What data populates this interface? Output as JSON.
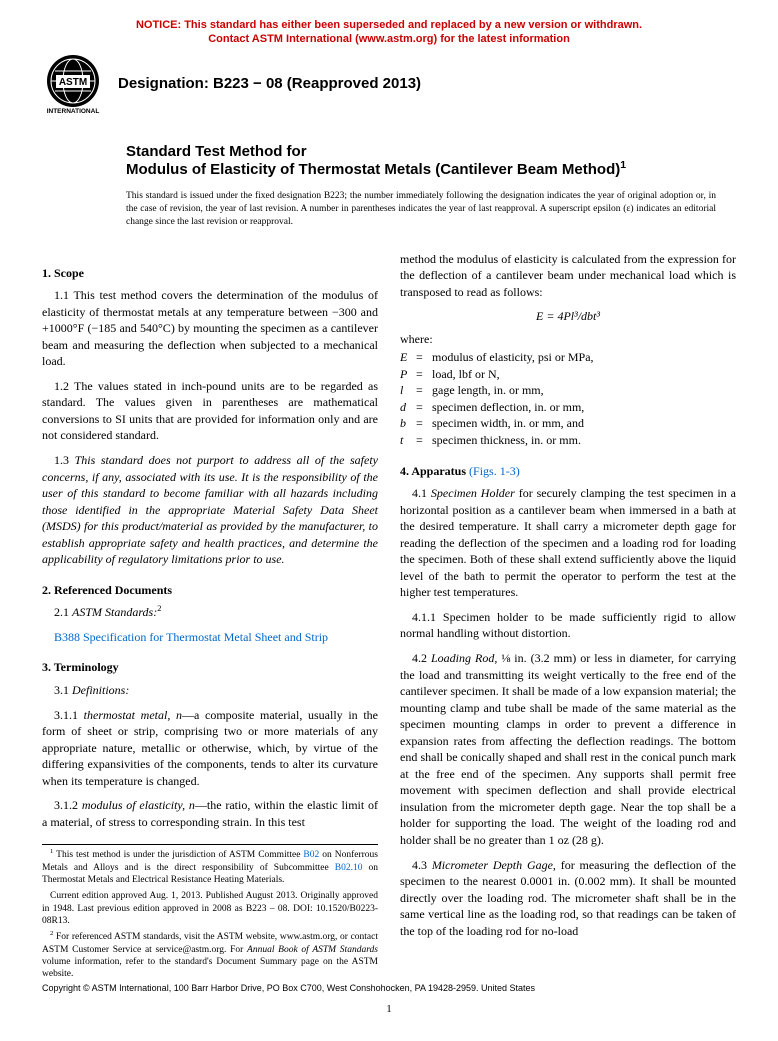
{
  "notice": {
    "color": "#cc0000",
    "line1": "NOTICE: This standard has either been superseded and replaced by a new version or withdrawn.",
    "line2": "Contact ASTM International (www.astm.org) for the latest information"
  },
  "logo": {
    "label_top": "ASTM",
    "label_bottom": "INTERNATIONAL",
    "bg": "#000000",
    "fg": "#ffffff"
  },
  "designation": "Designation: B223 − 08 (Reapproved 2013)",
  "title": {
    "pre": "Standard Test Method for",
    "main": "Modulus of Elasticity of Thermostat Metals (Cantilever Beam Method)",
    "sup": "1"
  },
  "issuance": "This standard is issued under the fixed designation B223; the number immediately following the designation indicates the year of original adoption or, in the case of revision, the year of last revision. A number in parentheses indicates the year of last reapproval. A superscript epsilon (ε) indicates an editorial change since the last revision or reapproval.",
  "left": {
    "s1_head": "1. Scope",
    "s1_1": "1.1 This test method covers the determination of the modulus of elasticity of thermostat metals at any temperature between −300 and +1000°F (−185 and 540°C) by mounting the specimen as a cantilever beam and measuring the deflection when subjected to a mechanical load.",
    "s1_2": "1.2 The values stated in inch-pound units are to be regarded as standard. The values given in parentheses are mathematical conversions to SI units that are provided for information only and are not considered standard.",
    "s1_3": "1.3 This standard does not purport to address all of the safety concerns, if any, associated with its use. It is the responsibility of the user of this standard to become familiar with all hazards including those identified in the appropriate Material Safety Data Sheet (MSDS) for this product/material as provided by the manufacturer, to establish appropriate safety and health practices, and determine the applicability of regulatory limitations prior to use.",
    "s2_head": "2. Referenced Documents",
    "s2_1_label": "2.1 ",
    "s2_1_ital": "ASTM Standards:",
    "s2_1_sup": "2",
    "s2_link": "B388 Specification for Thermostat Metal Sheet and Strip",
    "s3_head": "3. Terminology",
    "s3_1_label": "3.1 ",
    "s3_1_ital": "Definitions:",
    "s3_1_1_pre": "3.1.1 ",
    "s3_1_1_term": "thermostat metal, n",
    "s3_1_1_def": "—a composite material, usually in the form of sheet or strip, comprising two or more materials of any appropriate nature, metallic or otherwise, which, by virtue of the differing expansivities of the components, tends to alter its curvature when its temperature is changed.",
    "s3_1_2_pre": "3.1.2 ",
    "s3_1_2_term": "modulus of elasticity, n",
    "s3_1_2_def": "—the ratio, within the elastic limit of a material, of stress to corresponding strain. In this test",
    "fn1_pre": "1",
    "fn1": " This test method is under the jurisdiction of ASTM Committee ",
    "fn1_link1": "B02",
    "fn1_mid": " on Nonferrous Metals and Alloys and is the direct responsibility of Subcommittee ",
    "fn1_link2": "B02.10",
    "fn1_end": " on Thermostat Metals and Electrical Resistance Heating Materials.",
    "fn1b": "Current edition approved Aug. 1, 2013. Published August 2013. Originally approved in 1948. Last previous edition approved in 2008 as B223 – 08. DOI: 10.1520/B0223-08R13.",
    "fn2_pre": "2",
    "fn2": " For referenced ASTM standards, visit the ASTM website, www.astm.org, or contact ASTM Customer Service at service@astm.org. For ",
    "fn2_ital": "Annual Book of ASTM Standards",
    "fn2_end": " volume information, refer to the standard's Document Summary page on the ASTM website."
  },
  "right": {
    "cont": "method the modulus of elasticity is calculated from the expression for the deflection of a cantilever beam under mechanical load which is transposed to read as follows:",
    "formula": "E = 4Pl³/dbt³",
    "where_label": "where:",
    "vars": [
      {
        "sym": "E",
        "def": "modulus of elasticity, psi or MPa,"
      },
      {
        "sym": "P",
        "def": "load, lbf or N,"
      },
      {
        "sym": "l",
        "def": "gage length, in. or mm,"
      },
      {
        "sym": "d",
        "def": "specimen deflection, in. or mm,"
      },
      {
        "sym": "b",
        "def": "specimen width, in. or mm, and"
      },
      {
        "sym": "t",
        "def": "specimen thickness, in. or mm."
      }
    ],
    "s4_head_pre": "4. Apparatus ",
    "s4_head_link": "(Figs. 1-3)",
    "s4_1_pre": "4.1 ",
    "s4_1_term": "Specimen Holder",
    "s4_1": " for securely clamping the test specimen in a horizontal position as a cantilever beam when immersed in a bath at the desired temperature. It shall carry a micrometer depth gage for reading the deflection of the specimen and a loading rod for loading the specimen. Both of these shall extend sufficiently above the liquid level of the bath to permit the operator to perform the test at the higher test temperatures.",
    "s4_1_1": "4.1.1 Specimen holder to be made sufficiently rigid to allow normal handling without distortion.",
    "s4_2_pre": "4.2 ",
    "s4_2_term": "Loading Rod,",
    "s4_2": " ⅛ in. (3.2 mm) or less in diameter, for carrying the load and transmitting its weight vertically to the free end of the cantilever specimen. It shall be made of a low expansion material; the mounting clamp and tube shall be made of the same material as the specimen mounting clamps in order to prevent a difference in expansion rates from affecting the deflection readings. The bottom end shall be conically shaped and shall rest in the conical punch mark at the free end of the specimen. Any supports shall permit free movement with specimen deflection and shall provide electrical insulation from the micrometer depth gage. Near the top shall be a holder for supporting the load. The weight of the loading rod and holder shall be no greater than 1 oz (28 g).",
    "s4_3_pre": "4.3 ",
    "s4_3_term": "Micrometer Depth Gage,",
    "s4_3": " for measuring the deflection of the specimen to the nearest 0.0001 in. (0.002 mm). It shall be mounted directly over the loading rod. The micrometer shaft shall be in the same vertical line as the loading rod, so that readings can be taken of the top of the loading rod for no-load"
  },
  "copyright": "Copyright © ASTM International, 100 Barr Harbor Drive, PO Box C700, West Conshohocken, PA 19428-2959. United States",
  "pagenum": "1",
  "colors": {
    "link": "#0066cc",
    "text": "#000000",
    "bg": "#ffffff"
  }
}
